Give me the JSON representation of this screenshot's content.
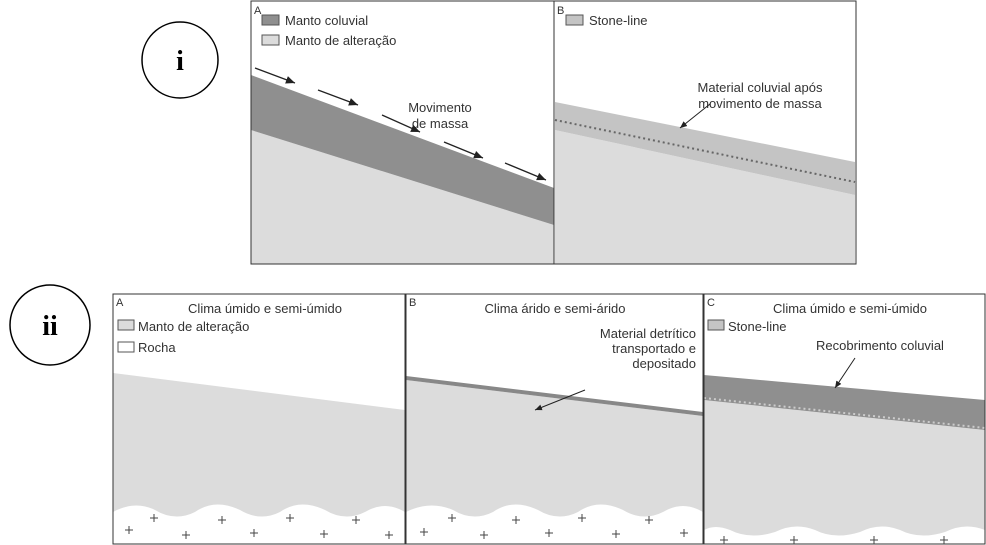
{
  "labels": {
    "top": "i",
    "bottom": "ii"
  },
  "top_panels": [
    {
      "letter": "A",
      "legend": [
        "Manto coluvial",
        "Manto de alteração"
      ],
      "annotation": [
        "Movimento",
        "de massa"
      ]
    },
    {
      "letter": "B",
      "legend": [
        "Stone-line"
      ],
      "annotation": [
        "Material coluvial após",
        "movimento de massa"
      ]
    }
  ],
  "bottom_panels": [
    {
      "letter": "A",
      "title": "Clima úmido e semi-úmido",
      "legend": [
        "Manto de alteração",
        "Rocha"
      ]
    },
    {
      "letter": "B",
      "title": "Clima árido e semi-árido",
      "annotation": [
        "Material detrítico",
        "transportado e",
        "depositado"
      ]
    },
    {
      "letter": "C",
      "title": "Clima úmido e semi-úmido",
      "legend": [
        "Stone-line"
      ],
      "annotation": [
        "Recobrimento coluvial"
      ]
    }
  ]
}
